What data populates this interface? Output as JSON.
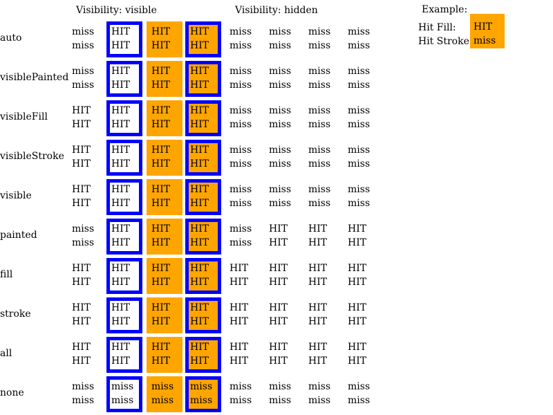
{
  "headers": {
    "visible": "Visibility: visible",
    "hidden": "Visibility: hidden"
  },
  "example": {
    "title": "Example:",
    "hit_fill_label": "Hit Fill:",
    "hit_stroke_label": "Hit Stroke:",
    "fill_value": "HIT",
    "stroke_value": "miss"
  },
  "colors": {
    "stroke": "#0000ff",
    "fill": "#ffa500"
  },
  "rows": [
    {
      "label": "auto",
      "cells": [
        [
          "miss",
          "miss"
        ],
        [
          "HIT",
          "HIT"
        ],
        [
          "HIT",
          "HIT"
        ],
        [
          "HIT",
          "HIT"
        ],
        [
          "miss",
          "miss"
        ],
        [
          "miss",
          "miss"
        ],
        [
          "miss",
          "miss"
        ],
        [
          "miss",
          "miss"
        ]
      ]
    },
    {
      "label": "visiblePainted",
      "cells": [
        [
          "miss",
          "miss"
        ],
        [
          "HIT",
          "HIT"
        ],
        [
          "HIT",
          "HIT"
        ],
        [
          "HIT",
          "HIT"
        ],
        [
          "miss",
          "miss"
        ],
        [
          "miss",
          "miss"
        ],
        [
          "miss",
          "miss"
        ],
        [
          "miss",
          "miss"
        ]
      ]
    },
    {
      "label": "visibleFill",
      "cells": [
        [
          "HIT",
          "HIT"
        ],
        [
          "HIT",
          "HIT"
        ],
        [
          "HIT",
          "HIT"
        ],
        [
          "HIT",
          "HIT"
        ],
        [
          "miss",
          "miss"
        ],
        [
          "miss",
          "miss"
        ],
        [
          "miss",
          "miss"
        ],
        [
          "miss",
          "miss"
        ]
      ]
    },
    {
      "label": "visibleStroke",
      "cells": [
        [
          "HIT",
          "HIT"
        ],
        [
          "HIT",
          "HIT"
        ],
        [
          "HIT",
          "HIT"
        ],
        [
          "HIT",
          "HIT"
        ],
        [
          "miss",
          "miss"
        ],
        [
          "miss",
          "miss"
        ],
        [
          "miss",
          "miss"
        ],
        [
          "miss",
          "miss"
        ]
      ]
    },
    {
      "label": "visible",
      "cells": [
        [
          "HIT",
          "HIT"
        ],
        [
          "HIT",
          "HIT"
        ],
        [
          "HIT",
          "HIT"
        ],
        [
          "HIT",
          "HIT"
        ],
        [
          "miss",
          "miss"
        ],
        [
          "miss",
          "miss"
        ],
        [
          "miss",
          "miss"
        ],
        [
          "miss",
          "miss"
        ]
      ]
    },
    {
      "label": "painted",
      "cells": [
        [
          "miss",
          "miss"
        ],
        [
          "HIT",
          "HIT"
        ],
        [
          "HIT",
          "HIT"
        ],
        [
          "HIT",
          "HIT"
        ],
        [
          "miss",
          "miss"
        ],
        [
          "HIT",
          "HIT"
        ],
        [
          "HIT",
          "HIT"
        ],
        [
          "HIT",
          "HIT"
        ]
      ]
    },
    {
      "label": "fill",
      "cells": [
        [
          "HIT",
          "HIT"
        ],
        [
          "HIT",
          "HIT"
        ],
        [
          "HIT",
          "HIT"
        ],
        [
          "HIT",
          "HIT"
        ],
        [
          "HIT",
          "HIT"
        ],
        [
          "HIT",
          "HIT"
        ],
        [
          "HIT",
          "HIT"
        ],
        [
          "HIT",
          "HIT"
        ]
      ]
    },
    {
      "label": "stroke",
      "cells": [
        [
          "HIT",
          "HIT"
        ],
        [
          "HIT",
          "HIT"
        ],
        [
          "HIT",
          "HIT"
        ],
        [
          "HIT",
          "HIT"
        ],
        [
          "HIT",
          "HIT"
        ],
        [
          "HIT",
          "HIT"
        ],
        [
          "HIT",
          "HIT"
        ],
        [
          "HIT",
          "HIT"
        ]
      ]
    },
    {
      "label": "all",
      "cells": [
        [
          "HIT",
          "HIT"
        ],
        [
          "HIT",
          "HIT"
        ],
        [
          "HIT",
          "HIT"
        ],
        [
          "HIT",
          "HIT"
        ],
        [
          "HIT",
          "HIT"
        ],
        [
          "HIT",
          "HIT"
        ],
        [
          "HIT",
          "HIT"
        ],
        [
          "HIT",
          "HIT"
        ]
      ]
    },
    {
      "label": "none",
      "cells": [
        [
          "miss",
          "miss"
        ],
        [
          "miss",
          "miss"
        ],
        [
          "miss",
          "miss"
        ],
        [
          "miss",
          "miss"
        ],
        [
          "miss",
          "miss"
        ],
        [
          "miss",
          "miss"
        ],
        [
          "miss",
          "miss"
        ],
        [
          "miss",
          "miss"
        ]
      ]
    }
  ]
}
